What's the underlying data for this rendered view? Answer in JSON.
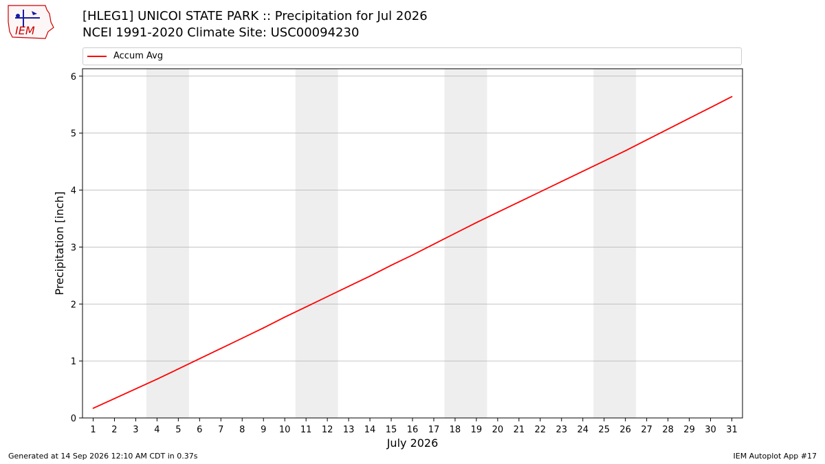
{
  "header": {
    "title_line1": "[HLEG1] UNICOI STATE PARK :: Precipitation for Jul 2026",
    "title_line2": "NCEI 1991-2020 Climate Site: USC00094230"
  },
  "logo": {
    "text": "IEM",
    "icon": "iem-logo-icon",
    "color": "#cc0000"
  },
  "footer": {
    "left": "Generated at 14 Sep 2026 12:10 AM CDT in 0.37s",
    "right": "IEM Autoplot App #17"
  },
  "chart_data": {
    "type": "line",
    "title": "",
    "xlabel": "July 2026",
    "ylabel": "Precipitation [inch]",
    "x": [
      1,
      2,
      3,
      4,
      5,
      6,
      7,
      8,
      9,
      10,
      11,
      12,
      13,
      14,
      15,
      16,
      17,
      18,
      19,
      20,
      21,
      22,
      23,
      24,
      25,
      26,
      27,
      28,
      29,
      30,
      31
    ],
    "xticklabels": [
      "1",
      "2",
      "3",
      "4",
      "5",
      "6",
      "7",
      "8",
      "9",
      "10",
      "11",
      "12",
      "13",
      "14",
      "15",
      "16",
      "17",
      "18",
      "19",
      "20",
      "21",
      "22",
      "23",
      "24",
      "25",
      "26",
      "27",
      "28",
      "29",
      "30",
      "31"
    ],
    "xlim": [
      0.5,
      31.5
    ],
    "ylim": [
      0,
      6.13
    ],
    "yticks": [
      0,
      1,
      2,
      3,
      4,
      5,
      6
    ],
    "grid": "horizontal",
    "legend_position": "top",
    "weekend_shading": [
      [
        3.5,
        5.5
      ],
      [
        10.5,
        12.5
      ],
      [
        17.5,
        19.5
      ],
      [
        24.5,
        26.5
      ]
    ],
    "shade_color": "#eeeeee",
    "series": [
      {
        "name": "Accum Avg",
        "color": "#ff0000",
        "values": [
          0.17,
          0.34,
          0.51,
          0.68,
          0.86,
          1.04,
          1.22,
          1.4,
          1.58,
          1.77,
          1.95,
          2.13,
          2.31,
          2.49,
          2.68,
          2.86,
          3.05,
          3.24,
          3.43,
          3.61,
          3.79,
          3.97,
          4.15,
          4.33,
          4.51,
          4.69,
          4.88,
          5.07,
          5.26,
          5.45,
          5.64
        ]
      }
    ]
  }
}
